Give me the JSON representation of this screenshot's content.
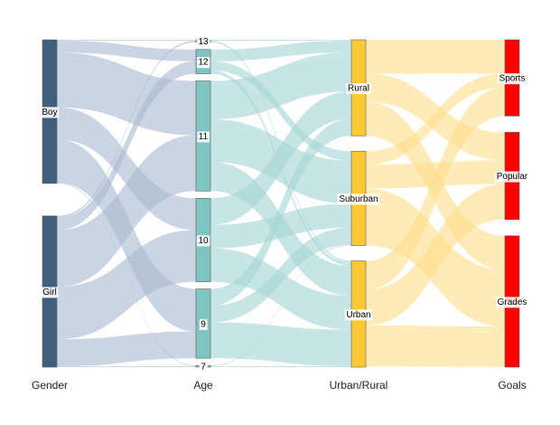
{
  "chart_data": {
    "type": "sankey",
    "title": "",
    "stages": [
      {
        "label": "Gender",
        "color": "#3f5f7f",
        "nodes": [
          {
            "name": "Boy",
            "label": "Boy"
          },
          {
            "name": "Girl",
            "label": "Girl"
          }
        ]
      },
      {
        "label": "Age",
        "color": "#7ec4c2",
        "nodes": [
          {
            "name": "13",
            "label": "13"
          },
          {
            "name": "12",
            "label": "12"
          },
          {
            "name": "11",
            "label": "11"
          },
          {
            "name": "10",
            "label": "10"
          },
          {
            "name": "9",
            "label": "9"
          },
          {
            "name": "7",
            "label": "7"
          }
        ]
      },
      {
        "label": "Urban/Rural",
        "color": "#ffc933",
        "nodes": [
          {
            "name": "Rural",
            "label": "Rural"
          },
          {
            "name": "Suburban",
            "label": "Suburban"
          },
          {
            "name": "Urban",
            "label": "Urban"
          }
        ]
      },
      {
        "label": "Goals",
        "color": "#ff0000",
        "nodes": [
          {
            "name": "Sports",
            "label": "Sports"
          },
          {
            "name": "Popular",
            "label": "Popular"
          },
          {
            "name": "Grades",
            "label": "Grades"
          }
        ]
      }
    ],
    "link_colors": [
      "#a9b9d1",
      "#a5d5d5",
      "#ffdf8a"
    ],
    "flows": [
      {
        "stage": 0,
        "source": "Boy",
        "target": "13",
        "value": 1
      },
      {
        "stage": 0,
        "source": "Boy",
        "target": "12",
        "value": 14
      },
      {
        "stage": 0,
        "source": "Boy",
        "target": "11",
        "value": 65
      },
      {
        "stage": 0,
        "source": "Boy",
        "target": "10",
        "value": 38
      },
      {
        "stage": 0,
        "source": "Boy",
        "target": "9",
        "value": 51
      },
      {
        "stage": 0,
        "source": "Boy",
        "target": "7",
        "value": 1
      },
      {
        "stage": 0,
        "source": "Girl",
        "target": "13",
        "value": 2
      },
      {
        "stage": 0,
        "source": "Girl",
        "target": "12",
        "value": 15
      },
      {
        "stage": 0,
        "source": "Girl",
        "target": "11",
        "value": 67
      },
      {
        "stage": 0,
        "source": "Girl",
        "target": "10",
        "value": 62
      },
      {
        "stage": 0,
        "source": "Girl",
        "target": "9",
        "value": 32
      },
      {
        "stage": 0,
        "source": "Girl",
        "target": "7",
        "value": 1
      },
      {
        "stage": 1,
        "source": "13",
        "target": "Rural",
        "value": 1
      },
      {
        "stage": 1,
        "source": "13",
        "target": "Urban",
        "value": 2
      },
      {
        "stage": 1,
        "source": "12",
        "target": "Rural",
        "value": 14
      },
      {
        "stage": 1,
        "source": "12",
        "target": "Suburban",
        "value": 11
      },
      {
        "stage": 1,
        "source": "12",
        "target": "Urban",
        "value": 4
      },
      {
        "stage": 1,
        "source": "11",
        "target": "Rural",
        "value": 46
      },
      {
        "stage": 1,
        "source": "11",
        "target": "Suburban",
        "value": 51
      },
      {
        "stage": 1,
        "source": "11",
        "target": "Urban",
        "value": 35
      },
      {
        "stage": 1,
        "source": "10",
        "target": "Rural",
        "value": 32
      },
      {
        "stage": 1,
        "source": "10",
        "target": "Suburban",
        "value": 28
      },
      {
        "stage": 1,
        "source": "10",
        "target": "Urban",
        "value": 40
      },
      {
        "stage": 1,
        "source": "9",
        "target": "Rural",
        "value": 20
      },
      {
        "stage": 1,
        "source": "9",
        "target": "Suburban",
        "value": 20
      },
      {
        "stage": 1,
        "source": "9",
        "target": "Urban",
        "value": 43
      },
      {
        "stage": 1,
        "source": "7",
        "target": "Suburban",
        "value": 1
      },
      {
        "stage": 1,
        "source": "7",
        "target": "Urban",
        "value": 1
      },
      {
        "stage": 2,
        "source": "Rural",
        "target": "Sports",
        "value": 40
      },
      {
        "stage": 2,
        "source": "Rural",
        "target": "Popular",
        "value": 33
      },
      {
        "stage": 2,
        "source": "Rural",
        "target": "Grades",
        "value": 40
      },
      {
        "stage": 2,
        "source": "Suburban",
        "target": "Sports",
        "value": 16
      },
      {
        "stage": 2,
        "source": "Suburban",
        "target": "Popular",
        "value": 28
      },
      {
        "stage": 2,
        "source": "Suburban",
        "target": "Grades",
        "value": 67
      },
      {
        "stage": 2,
        "source": "Urban",
        "target": "Sports",
        "value": 34
      },
      {
        "stage": 2,
        "source": "Urban",
        "target": "Popular",
        "value": 42
      },
      {
        "stage": 2,
        "source": "Urban",
        "target": "Grades",
        "value": 48
      }
    ]
  }
}
